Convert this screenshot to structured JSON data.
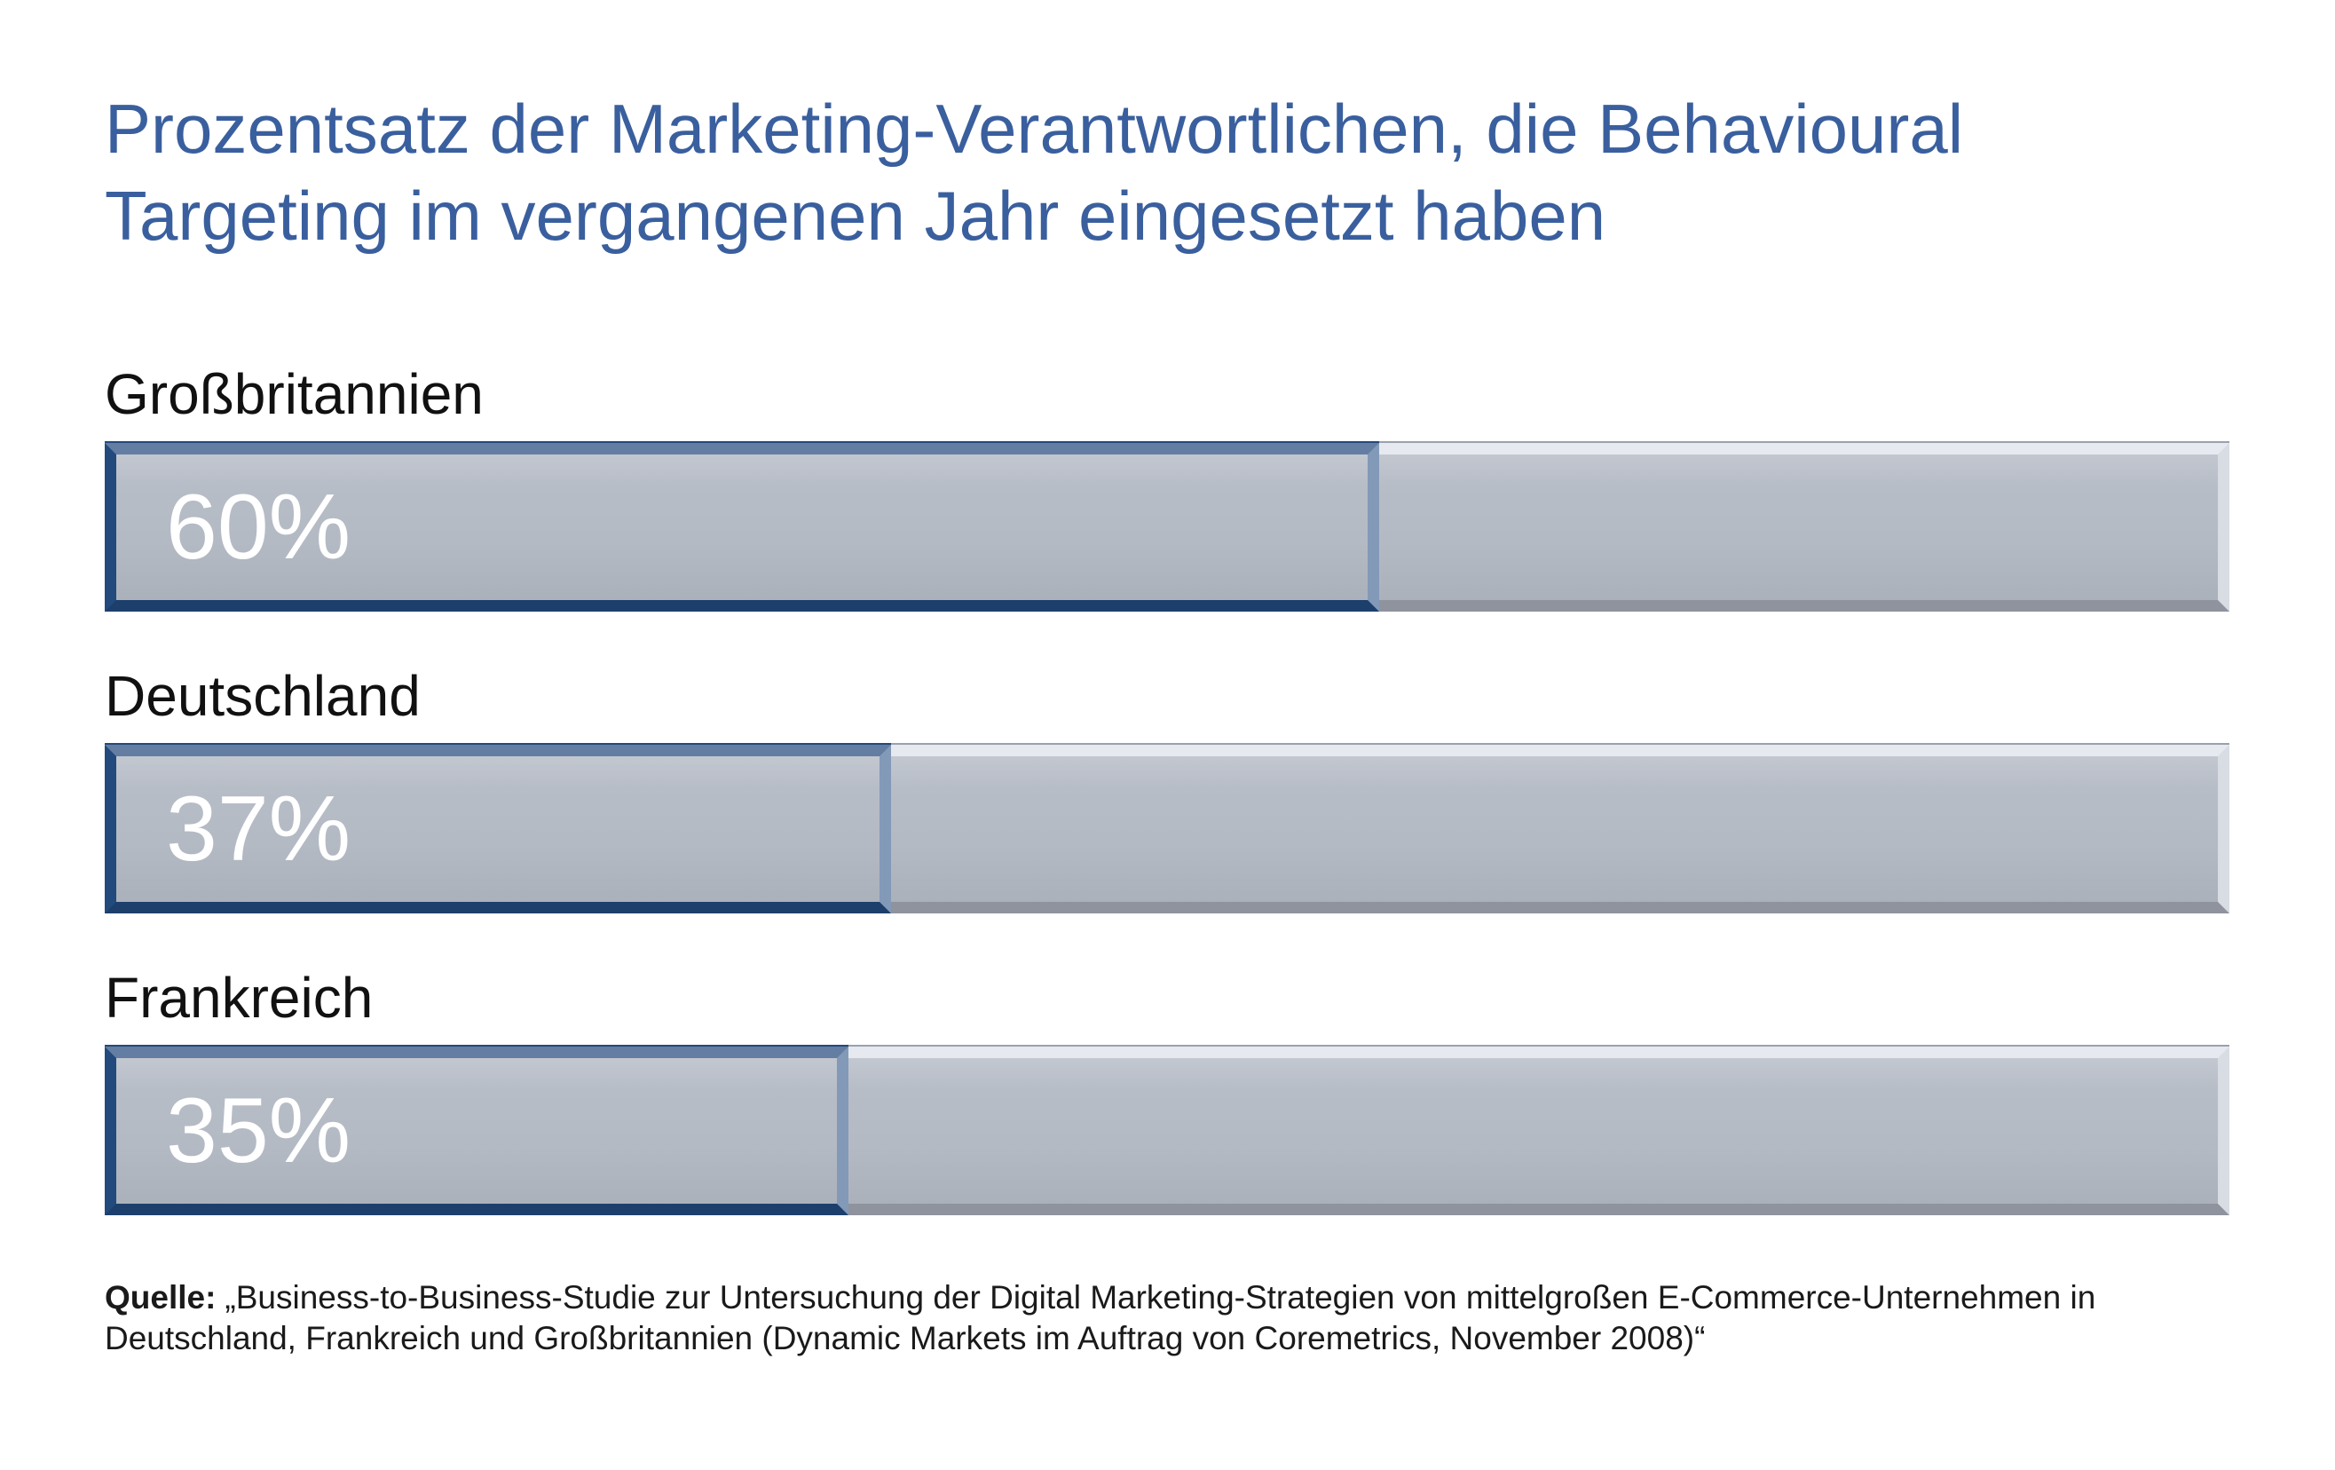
{
  "title": {
    "text": "Prozentsatz der Marketing-Verantwortlichen, die Behavioural Targeting im vergangenen Jahr eingesetzt haben",
    "color": "#3a5f9e"
  },
  "chart_data": {
    "type": "bar",
    "orientation": "horizontal",
    "title": "Prozentsatz der Marketing-Verantwortlichen, die Behavioural Targeting im vergangenen Jahr eingesetzt haben",
    "categories": [
      "Großbritannien",
      "Deutschland",
      "Frankreich"
    ],
    "values": [
      60,
      37,
      35
    ],
    "value_labels": [
      "60%",
      "37%",
      "35%"
    ],
    "xlim": [
      0,
      100
    ],
    "grid": false,
    "legend": false,
    "bar_color": "#2b568e",
    "track_color": "#b4bac4",
    "value_text_color": "#ffffff",
    "label_text_color": "#111111"
  },
  "source": {
    "label": "Quelle:",
    "text": "„Business-to-Business-Studie zur Untersuchung der Digital Marketing-Strategien von mittelgroßen E-Commerce-Unternehmen in Deutschland, Frankreich und Großbritannien (Dynamic Markets im Auftrag von Coremetrics, November 2008)“"
  }
}
